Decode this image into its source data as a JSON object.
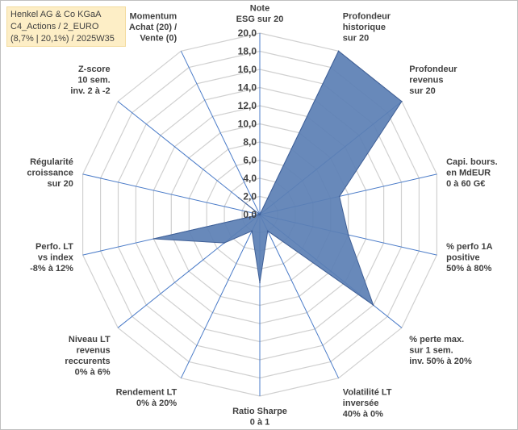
{
  "title": {
    "line1": "Henkel AG & Co KGaA",
    "line2": "C4_Actions / 2_EURO",
    "line3": "(8,7% | 20,1%) / 2025W35"
  },
  "colors": {
    "fill": "#5b7fb4",
    "stroke": "#3f5f96",
    "grid": "#d0d0d0",
    "axis": "#4a7bc8"
  },
  "chart_data": {
    "type": "radar",
    "rmin": 0,
    "rmax": 20,
    "grid": true,
    "tick_labels": [
      "0,0",
      "2,0",
      "4,0",
      "6,0",
      "8,0",
      "10,0",
      "12,0",
      "14,0",
      "16,0",
      "18,0",
      "20,0"
    ],
    "axes": [
      {
        "label": [
          "Note",
          "ESG sur 20"
        ],
        "value": 0
      },
      {
        "label": [
          "Profondeur",
          "historique",
          "sur 20"
        ],
        "value": 20
      },
      {
        "label": [
          "Profondeur",
          "revenus",
          "sur 20"
        ],
        "value": 20
      },
      {
        "label": [
          "Capi. bours.",
          "en MdEUR",
          "0 à 60 G€"
        ],
        "value": 9
      },
      {
        "label": [
          "% perfo 1A",
          "positive",
          "50% à 80%"
        ],
        "value": 10
      },
      {
        "label": [
          "% perte max.",
          "sur 1 sem.",
          "inv. 50% à 20%"
        ],
        "value": 16
      },
      {
        "label": [
          "Volatilité LT",
          "inversée",
          "40% à 0%"
        ],
        "value": 2
      },
      {
        "label": [
          "Ratio Sharpe",
          "0 à 1"
        ],
        "value": 7.5
      },
      {
        "label": [
          "Rendement LT",
          "0% à 20%"
        ],
        "value": 2
      },
      {
        "label": [
          "Niveau LT",
          "revenus",
          "reccurents",
          "0% à 6%"
        ],
        "value": 5
      },
      {
        "label": [
          "Perfo. LT",
          "vs index",
          "-8% à 12%"
        ],
        "value": 12
      },
      {
        "label": [
          "Régularité",
          "croissance",
          "sur 20"
        ],
        "value": 0
      },
      {
        "label": [
          "Z-score",
          "10 sem.",
          "inv. 2 à -2"
        ],
        "value": 3
      },
      {
        "label": [
          "Momentum",
          "Achat (20) /",
          "Vente (0)"
        ],
        "value": 0
      }
    ]
  }
}
